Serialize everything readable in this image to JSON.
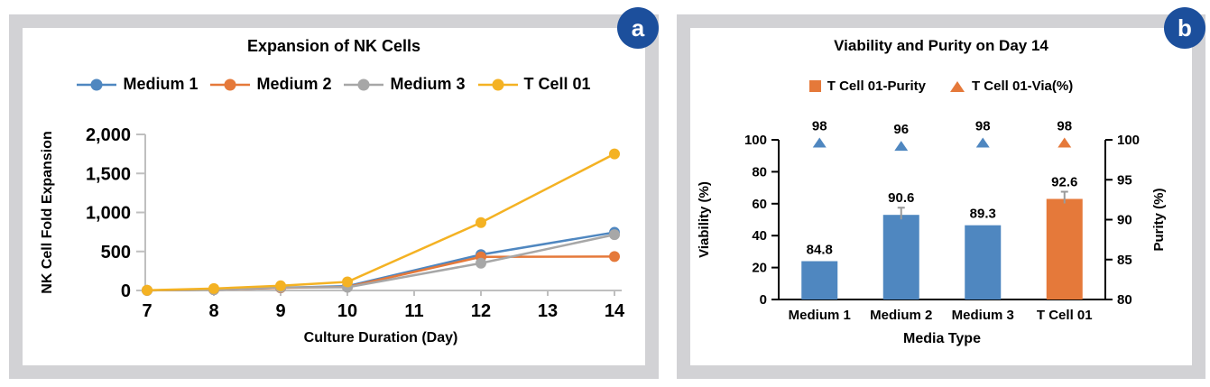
{
  "figure": {
    "panels": {
      "a": {
        "badge": "a"
      },
      "b": {
        "badge": "b"
      }
    }
  },
  "colors": {
    "frame_gray": "#d2d2d5",
    "badge_blue": "#1c4f9c",
    "series_blue": "#4f87c0",
    "series_orange": "#e5793a",
    "series_gray": "#a7a7a7",
    "series_gold": "#f4b223",
    "panel_a_axis_gray": "#bfbfbf",
    "panel_b_axis_black": "#000000"
  },
  "chart_data": [
    {
      "type": "line",
      "title": "Expansion of NK Cells",
      "xlabel": "Culture Duration (Day)",
      "ylabel": "NK Cell Fold Expansion",
      "x": [
        7,
        8,
        9,
        10,
        12,
        14
      ],
      "x_ticks": [
        7,
        8,
        9,
        10,
        11,
        12,
        13,
        14
      ],
      "xlim": [
        7,
        14
      ],
      "ylim": [
        0,
        2000
      ],
      "y_ticks": [
        0,
        500,
        1000,
        1500,
        2000
      ],
      "grid": false,
      "legend_position": "top",
      "series": [
        {
          "name": "Medium 1",
          "color": "#4f87c0",
          "values": [
            1,
            10,
            35,
            55,
            460,
            745
          ]
        },
        {
          "name": "Medium 2",
          "color": "#e5793a",
          "values": [
            1,
            10,
            35,
            45,
            430,
            435
          ]
        },
        {
          "name": "Medium 3",
          "color": "#a7a7a7",
          "values": [
            1,
            10,
            40,
            40,
            350,
            715
          ]
        },
        {
          "name": "T Cell 01",
          "color": "#f4b223",
          "values": [
            3,
            25,
            60,
            110,
            870,
            1750
          ]
        }
      ]
    },
    {
      "type": "bar",
      "title": "Viability and Purity on Day 14",
      "xlabel": "Media Type",
      "ylabel_left": "Viability (%)",
      "ylabel_right": "Purity (%)",
      "categories": [
        "Medium 1",
        "Medium 2",
        "Medium 3",
        "T Cell 01"
      ],
      "ylim_left": [
        0,
        100
      ],
      "yticks_left": [
        0,
        20,
        40,
        60,
        80,
        100
      ],
      "ylim_right": [
        80,
        100
      ],
      "yticks_right": [
        80,
        85,
        90,
        95,
        100
      ],
      "grid": false,
      "legend_position": "top",
      "series": [
        {
          "name": "T Cell 01-Purity",
          "plot": "bar",
          "axis": "right",
          "values": [
            84.8,
            90.6,
            89.3,
            92.6
          ],
          "labels": [
            "84.8",
            "90.6",
            "89.3",
            "92.6"
          ],
          "colors": [
            "#4f87c0",
            "#4f87c0",
            "#4f87c0",
            "#e5793a"
          ],
          "error": [
            0,
            0.9,
            0,
            0.9
          ],
          "legend_color": "#e5793a"
        },
        {
          "name": "T Cell 01-Via(%)",
          "plot": "triangle",
          "axis": "left",
          "values": [
            98,
            96,
            98,
            98
          ],
          "labels": [
            "98",
            "96",
            "98",
            "98"
          ],
          "colors": [
            "#4f87c0",
            "#4f87c0",
            "#4f87c0",
            "#e5793a"
          ],
          "legend_color": "#e5793a"
        }
      ]
    }
  ]
}
